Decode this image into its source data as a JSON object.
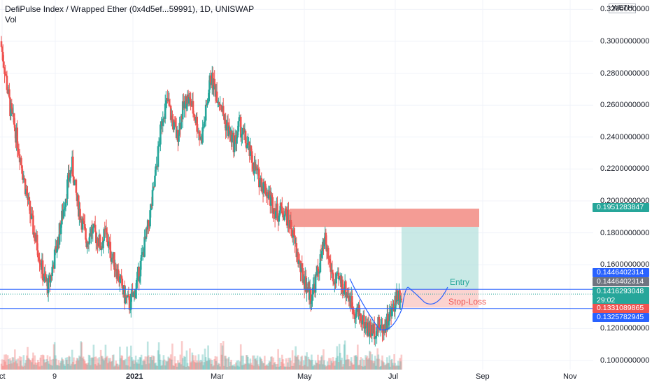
{
  "header": {
    "title": "DefiPulse Index / Wrapped Ether (0x4d5ef...59991), 1D, UNISWAP",
    "indicator": "Vol",
    "symbol_badge": "WETH"
  },
  "colors": {
    "up": "#26a69a",
    "down": "#ef5350",
    "blue_line": "#2962ff",
    "stop_zone": "#f7a7a1",
    "target_zone": "#b2dfdb",
    "resistance_zone": "#f28b82"
  },
  "annotations": {
    "entry": "Entry",
    "stop_loss": "Stop-Loss"
  },
  "price_tags": {
    "upper": "0.1951283847",
    "line_top": "0.1446402314",
    "entry": "0.1446402314",
    "last_price": "0.1416293048",
    "countdown": "29:02",
    "stop": "0.1331089865",
    "line_bottom": "0.1325782945"
  },
  "chart_data": {
    "type": "candlestick",
    "title": "DefiPulse Index / Wrapped Ether (0x4d5ef...59991), 1D, UNISWAP",
    "y_ticks": [
      "0.3200000000",
      "0.3000000000",
      "0.2800000000",
      "0.2600000000",
      "0.2400000000",
      "0.2200000000",
      "0.2000000000",
      "0.1800000000",
      "0.1600000000",
      "0.1200000000",
      "0.1000000000"
    ],
    "x_ticks": [
      "ct",
      "9",
      "2021",
      "Mar",
      "May",
      "Jul",
      "Sep",
      "Nov"
    ],
    "x_ticks_bold": [
      "2021"
    ],
    "ylim": [
      0.092,
      0.325
    ],
    "key_levels": {
      "resistance_zone": [
        0.1837,
        0.1951283847
      ],
      "entry": 0.1446402314,
      "stop": 0.1331089865,
      "line_top": 0.1446402314,
      "line_bottom": 0.1325782945,
      "target": 0.1837
    },
    "path": [
      0.3,
      0.28,
      0.258,
      0.245,
      0.23,
      0.212,
      0.195,
      0.18,
      0.168,
      0.152,
      0.146,
      0.16,
      0.175,
      0.192,
      0.21,
      0.222,
      0.2,
      0.188,
      0.175,
      0.182,
      0.178,
      0.172,
      0.18,
      0.168,
      0.16,
      0.15,
      0.14,
      0.135,
      0.142,
      0.155,
      0.17,
      0.185,
      0.205,
      0.23,
      0.255,
      0.262,
      0.25,
      0.24,
      0.255,
      0.265,
      0.26,
      0.25,
      0.238,
      0.255,
      0.278,
      0.27,
      0.262,
      0.25,
      0.242,
      0.235,
      0.248,
      0.24,
      0.232,
      0.222,
      0.215,
      0.21,
      0.205,
      0.198,
      0.192,
      0.195,
      0.19,
      0.182,
      0.168,
      0.155,
      0.148,
      0.14,
      0.15,
      0.162,
      0.175,
      0.16,
      0.148,
      0.15,
      0.146,
      0.14,
      0.132,
      0.13,
      0.124,
      0.12,
      0.118,
      0.122,
      0.12,
      0.125,
      0.13,
      0.142,
      0.1416
    ],
    "series": []
  }
}
